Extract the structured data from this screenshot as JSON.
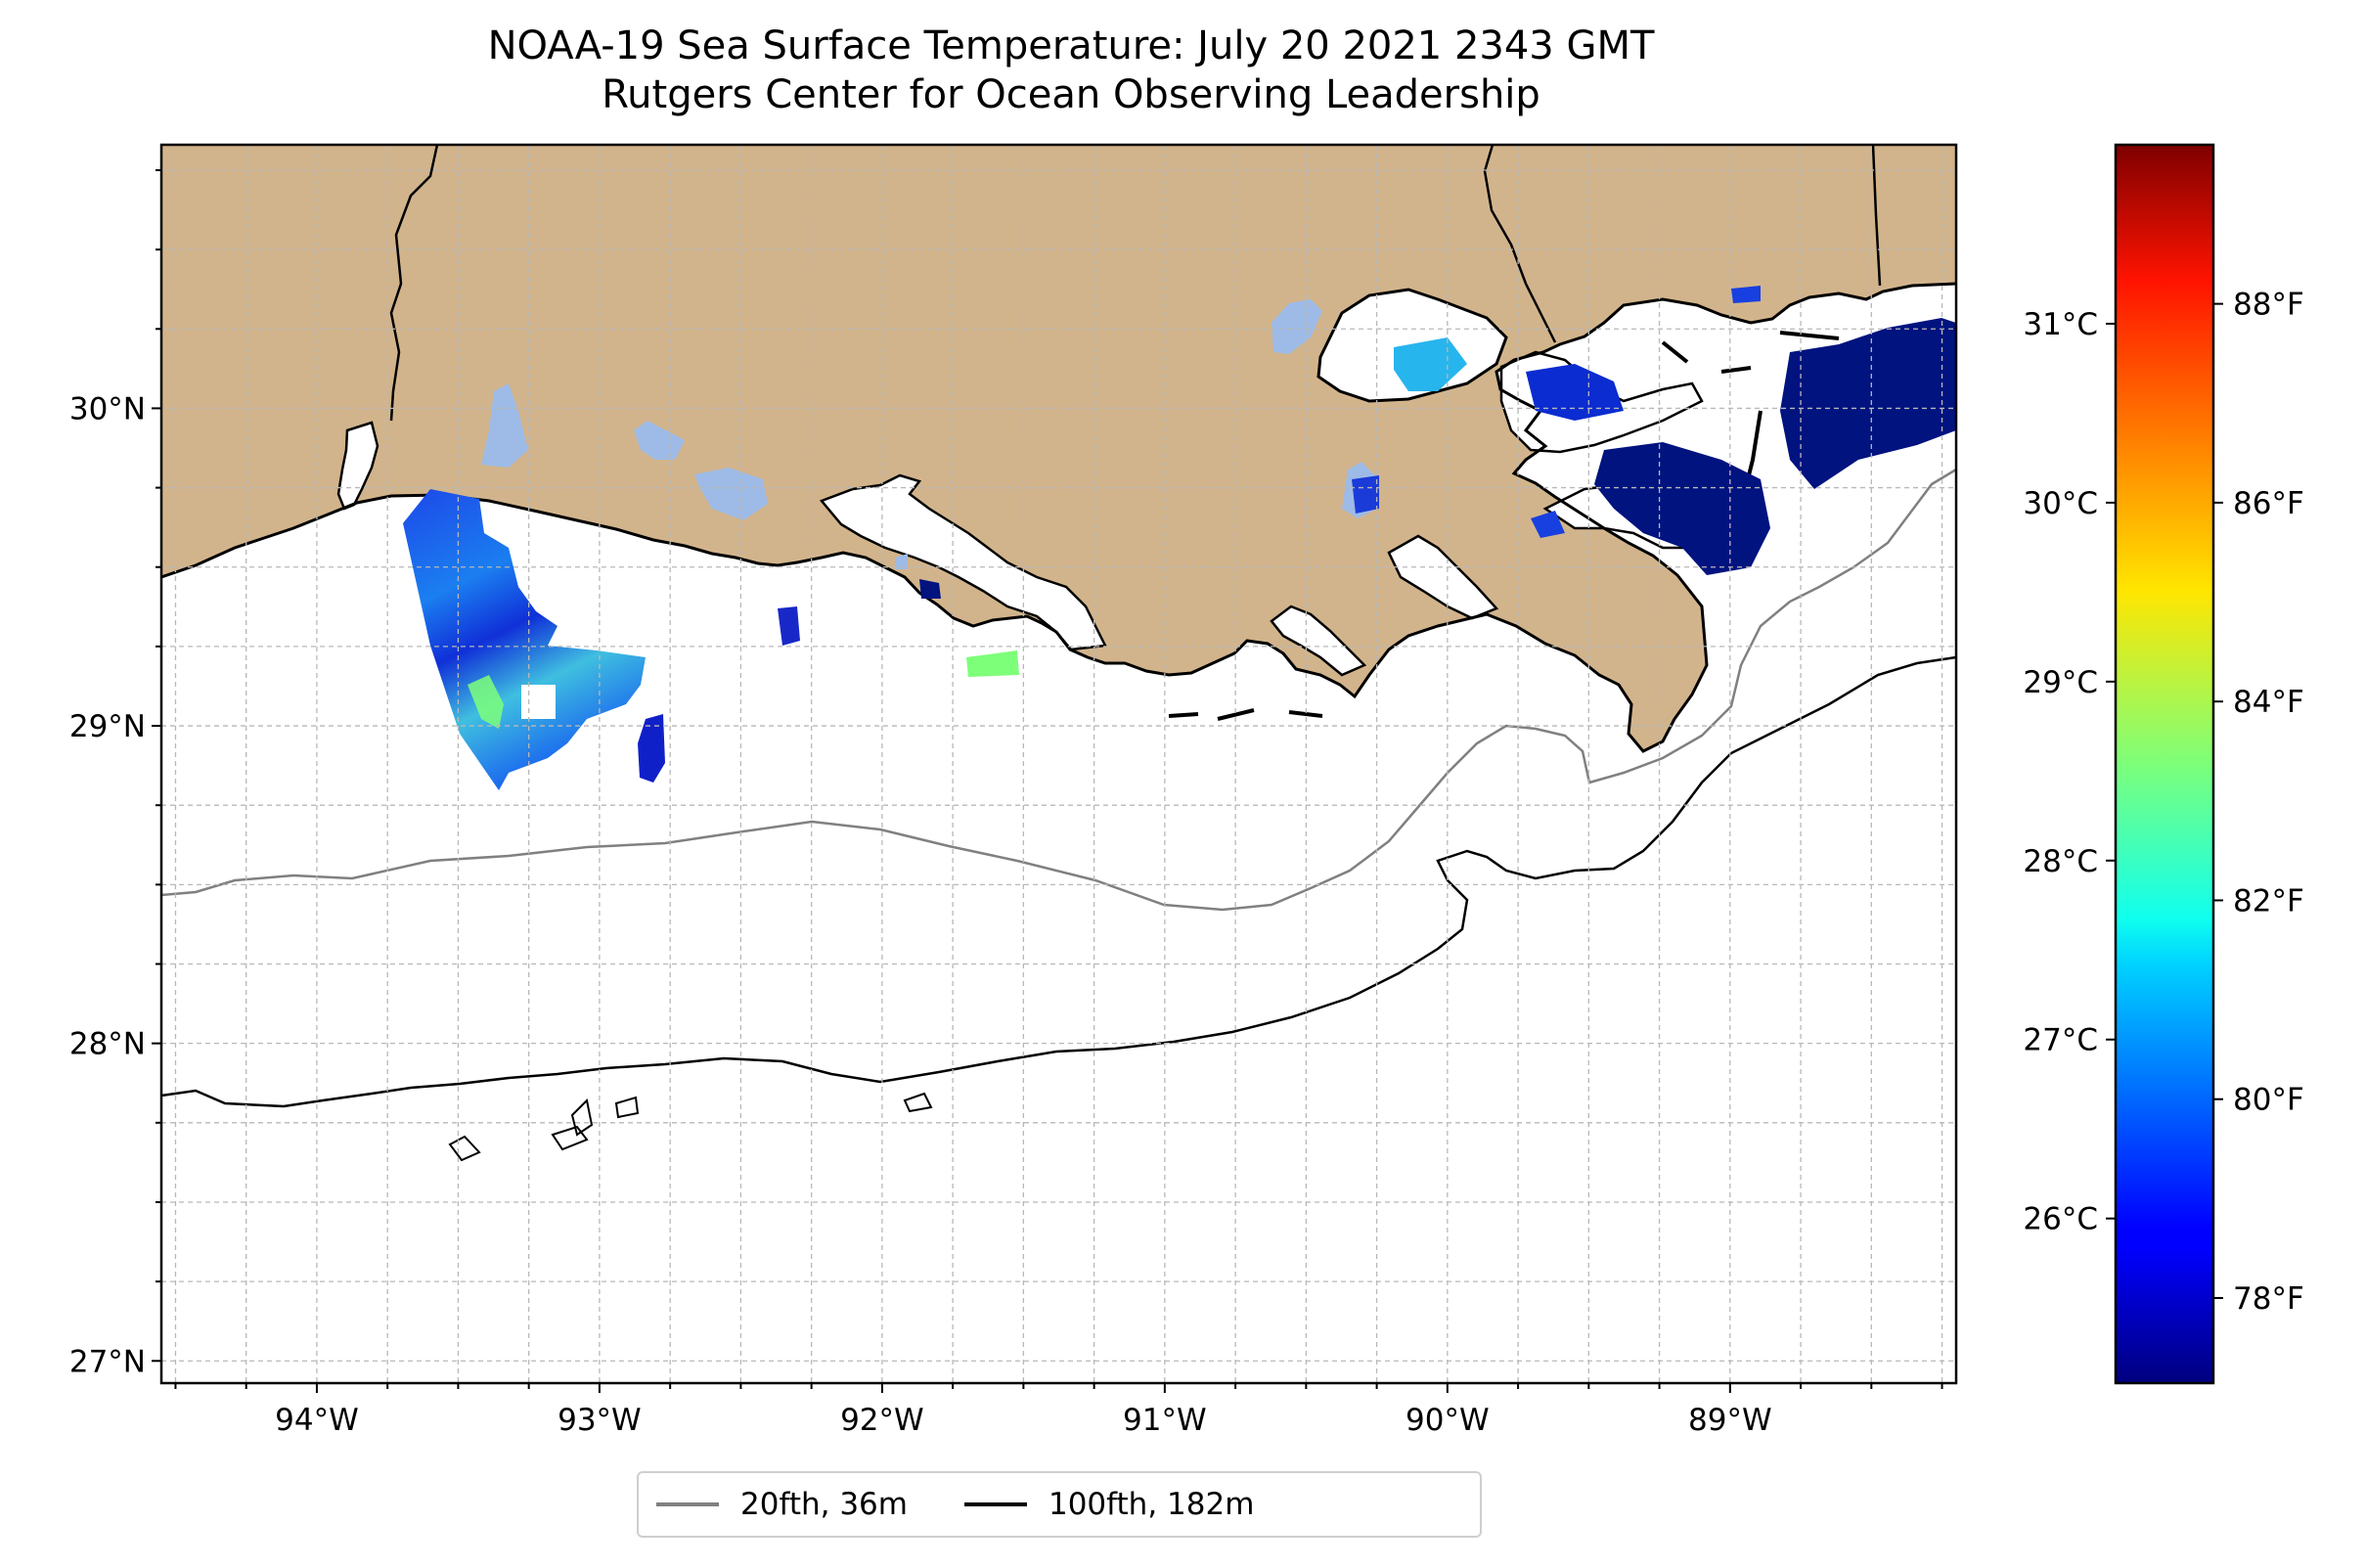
{
  "title": {
    "line1": "NOAA-19 Sea Surface Temperature: July 20 2021 2343 GMT",
    "line2": "Rutgers Center for Ocean Observing Leadership"
  },
  "map": {
    "lon_range": [
      -94.55,
      -88.2
    ],
    "lat_range": [
      26.93,
      30.83
    ],
    "lon_ticks": [
      -94,
      -93,
      -92,
      -91,
      -90,
      -89
    ],
    "lon_tick_labels": [
      "94°W",
      "93°W",
      "92°W",
      "91°W",
      "90°W",
      "89°W"
    ],
    "lat_ticks": [
      27,
      28,
      29,
      30
    ],
    "lat_tick_labels": [
      "27°N",
      "28°N",
      "29°N",
      "30°N"
    ],
    "gridlines": "dashed, 0.25°",
    "land_color": "#d2b48c",
    "ocean_color": "#ffffff",
    "lake_color": "#9dbbe6"
  },
  "colorbar": {
    "colormap": "jet",
    "celsius_range": [
      25.08,
      32.0
    ],
    "celsius_ticks": [
      26,
      27,
      28,
      29,
      30,
      31
    ],
    "celsius_labels": [
      "26°C",
      "27°C",
      "28°C",
      "29°C",
      "30°C",
      "31°C"
    ],
    "fahrenheit_ticks": [
      78,
      80,
      82,
      84,
      86,
      88
    ],
    "fahrenheit_labels": [
      "78°F",
      "80°F",
      "82°F",
      "84°F",
      "86°F",
      "88°F"
    ]
  },
  "legend": {
    "items": [
      {
        "label": "20fth, 36m",
        "color": "#808080"
      },
      {
        "label": "100fth, 182m",
        "color": "#000000"
      }
    ],
    "position": "bottom-center"
  }
}
